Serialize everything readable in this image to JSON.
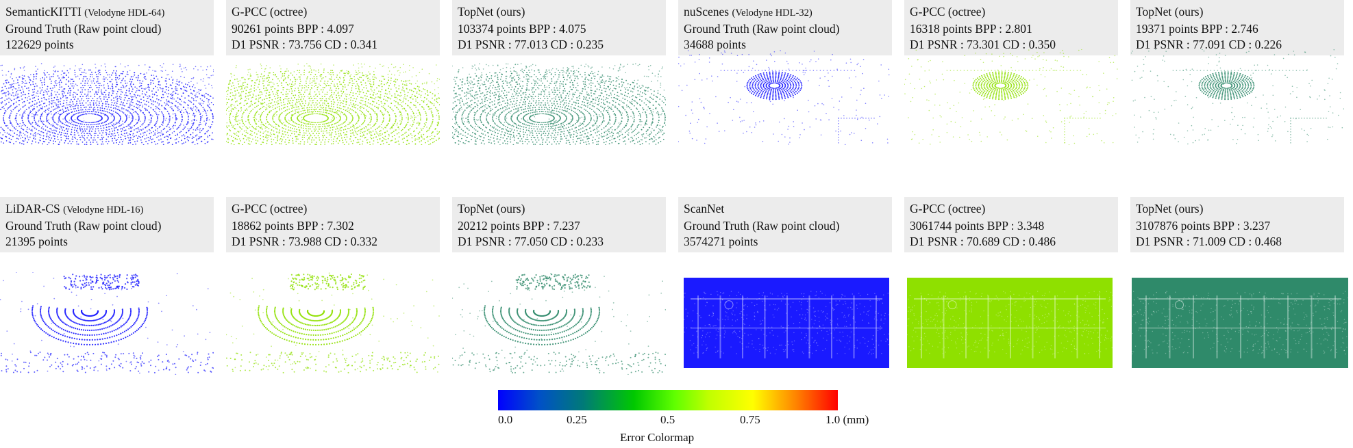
{
  "panels": [
    {
      "dataset": "SemanticKITTI",
      "sensor": "(Velodyne HDL-64)",
      "line2": "Ground Truth (Raw point cloud)",
      "line3": "122629 points"
    },
    {
      "dataset": "G-PCC (octree)",
      "sensor": "",
      "line2": "90261 points  BPP : 4.097",
      "line3": "D1 PSNR : 73.756  CD : 0.341"
    },
    {
      "dataset": "TopNet (ours)",
      "sensor": "",
      "line2": "103374 points  BPP :  4.075",
      "line3": "D1 PSNR : 77.013  CD : 0.235"
    },
    {
      "dataset": "nuScenes",
      "sensor": "(Velodyne HDL-32)",
      "line2": "Ground Truth (Raw point cloud)",
      "line3": "34688 points"
    },
    {
      "dataset": "G-PCC (octree)",
      "sensor": "",
      "line2": "16318 points  BPP : 2.801",
      "line3": "D1 PSNR : 73.301  CD : 0.350"
    },
    {
      "dataset": "TopNet (ours)",
      "sensor": "",
      "line2": "19371 points  BPP :  2.746",
      "line3": "D1 PSNR : 77.091  CD : 0.226"
    },
    {
      "dataset": "LiDAR-CS",
      "sensor": "(Velodyne HDL-16)",
      "line2": "Ground Truth (Raw point cloud)",
      "line3": "21395 points"
    },
    {
      "dataset": "G-PCC (octree)",
      "sensor": "",
      "line2": "18862 points  BPP : 7.302",
      "line3": "D1 PSNR : 73.988  CD : 0.332"
    },
    {
      "dataset": "TopNet (ours)",
      "sensor": "",
      "line2": "20212 points  BPP :  7.237",
      "line3": "D1 PSNR : 77.050  CD : 0.233"
    },
    {
      "dataset": "ScanNet",
      "sensor": "",
      "line2": "Ground Truth (Raw point cloud)",
      "line3": "3574271 points"
    },
    {
      "dataset": "G-PCC (octree)",
      "sensor": "",
      "line2": "3061744 points  BPP : 3.348",
      "line3": "D1 PSNR : 70.689  CD : 0.486"
    },
    {
      "dataset": "TopNet (ours)",
      "sensor": "",
      "line2": "3107876 points  BPP :  3.237",
      "line3": "D1 PSNR : 71.009  CD : 0.468"
    }
  ],
  "colorbar": {
    "ticks": [
      "0.0",
      "0.25",
      "0.5",
      "0.75",
      "1.0 (mm)"
    ],
    "title": "Error Colormap",
    "colors": [
      "#0000ff",
      "#007a78",
      "#00c800",
      "#ffff00",
      "#ff0000"
    ]
  },
  "cloud_colors": {
    "ground_truth": "#1a1aff",
    "gpcc": "#8fe000",
    "topnet": "#2f8a6a"
  }
}
